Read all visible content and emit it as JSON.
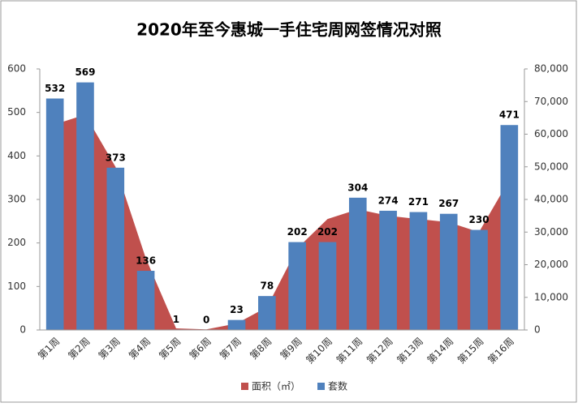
{
  "chart_data": {
    "type": "combo",
    "title": "2020年至今惠城一手住宅周网签情况对照",
    "categories": [
      "第1周",
      "第2周",
      "第3周",
      "第4周",
      "第5周",
      "第6周",
      "第7周",
      "第8周",
      "第9周",
      "第10周",
      "第11周",
      "第12周",
      "第13周",
      "第14周",
      "第15周",
      "第16周"
    ],
    "series": [
      {
        "name": "面积（㎡）",
        "type": "area",
        "axis": "y2",
        "color": "#c0504d",
        "values": [
          63000,
          66000,
          50000,
          22000,
          500,
          200,
          2000,
          7000,
          25000,
          34000,
          37000,
          35000,
          34000,
          33000,
          30000,
          46000
        ]
      },
      {
        "name": "套数",
        "type": "bar",
        "color": "#4f81bd",
        "values": [
          532,
          569,
          373,
          136,
          1,
          0,
          23,
          78,
          202,
          202,
          304,
          274,
          271,
          267,
          230,
          471
        ]
      }
    ],
    "ylim": [
      0,
      600
    ],
    "yticks": [
      0,
      100,
      200,
      300,
      400,
      500,
      600
    ],
    "y2lim": [
      0,
      80000
    ],
    "y2ticks": [
      0,
      {
        "value": 10000,
        "label": "10,000"
      },
      {
        "value": 20000,
        "label": "20,000"
      },
      {
        "value": 30000,
        "label": "30,000"
      },
      {
        "value": 40000,
        "label": "40,000"
      },
      {
        "value": 50000,
        "label": "50,000"
      },
      {
        "value": 60000,
        "label": "60,000"
      },
      {
        "value": 70000,
        "label": "70,000"
      },
      {
        "value": 80000,
        "label": "80,000"
      }
    ],
    "legend": "bottom"
  }
}
